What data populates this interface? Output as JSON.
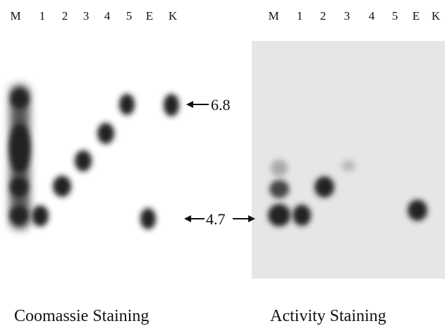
{
  "left_panel": {
    "lanes": [
      "M",
      "1",
      "2",
      "3",
      "4",
      "5",
      "E",
      "K"
    ],
    "caption": "Coomassie Staining"
  },
  "right_panel": {
    "lanes": [
      "M",
      "1",
      "2",
      "3",
      "4",
      "5",
      "E",
      "K"
    ],
    "caption": "Activity Staining"
  },
  "markers": {
    "high": "6.8",
    "low": "4.7"
  }
}
